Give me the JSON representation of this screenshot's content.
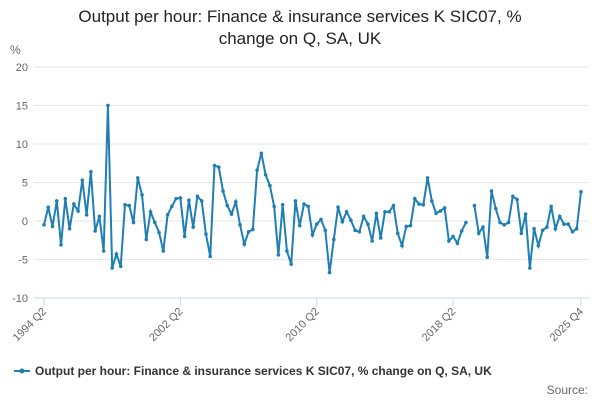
{
  "chart_data": {
    "type": "line",
    "title": "Output per hour: Finance & insurance services K SIC07, % change on Q, SA, UK",
    "y_label": "%",
    "source": "Source:",
    "categories": [
      "1994 Q2",
      null,
      null,
      null,
      null,
      null,
      null,
      null,
      null,
      null,
      null,
      null,
      null,
      null,
      null,
      null,
      null,
      null,
      null,
      null,
      null,
      null,
      null,
      null,
      null,
      null,
      null,
      null,
      null,
      null,
      null,
      null,
      "2002 Q2",
      null,
      null,
      null,
      null,
      null,
      null,
      null,
      null,
      null,
      null,
      null,
      null,
      null,
      null,
      null,
      null,
      null,
      null,
      null,
      null,
      null,
      null,
      null,
      null,
      null,
      null,
      null,
      null,
      null,
      null,
      null,
      "2010 Q2",
      null,
      null,
      null,
      null,
      null,
      null,
      null,
      null,
      null,
      null,
      null,
      null,
      null,
      null,
      null,
      null,
      null,
      null,
      null,
      null,
      null,
      null,
      null,
      null,
      null,
      null,
      null,
      null,
      null,
      null,
      null,
      "2018 Q2",
      null,
      null,
      null,
      null,
      null,
      null,
      null,
      null,
      null,
      null,
      null,
      null,
      null,
      null,
      null,
      null,
      null,
      null,
      null,
      null,
      null,
      null,
      null,
      null,
      null,
      null,
      null,
      null,
      null,
      "2025 Q4"
    ],
    "series": [
      {
        "name": "Output per hour: Finance & insurance services K SIC07, % change on Q, SA, UK",
        "color": "#1f7fb4",
        "values": [
          -0.5,
          1.8,
          -0.7,
          2.6,
          -3.1,
          2.9,
          -1.0,
          2.2,
          1.3,
          5.3,
          0.8,
          6.4,
          -1.3,
          0.6,
          -3.9,
          15.0,
          -6.1,
          -4.3,
          -5.9,
          2.1,
          2.0,
          -0.2,
          5.6,
          3.4,
          -2.4,
          1.2,
          -0.2,
          -1.5,
          -3.9,
          0.8,
          1.9,
          2.9,
          3.0,
          -2.0,
          2.7,
          -0.8,
          3.2,
          2.6,
          -1.7,
          -4.6,
          7.2,
          7.0,
          3.9,
          2.0,
          0.9,
          2.5,
          -0.5,
          -3.0,
          -1.4,
          -1.1,
          6.6,
          8.8,
          6.0,
          4.6,
          1.9,
          -4.4,
          2.1,
          -3.9,
          -5.6,
          2.6,
          -0.6,
          2.2,
          1.9,
          -1.8,
          -0.4,
          0.2,
          -1.2,
          -6.7,
          -2.4,
          1.8,
          -0.1,
          1.2,
          0.1,
          -1.2,
          -1.4,
          0.6,
          -0.4,
          -2.6,
          1.0,
          -2.2,
          1.2,
          1.2,
          2.0,
          -1.6,
          -3.2,
          -0.7,
          -0.6,
          2.9,
          2.2,
          2.1,
          5.6,
          2.6,
          1.0,
          1.3,
          1.7,
          -2.6,
          -2.0,
          -2.9,
          -1.3,
          -0.2,
          null,
          2.0,
          -1.6,
          -0.8,
          -4.7,
          3.9,
          1.6,
          -0.2,
          -0.5,
          -0.2,
          3.2,
          2.8,
          -1.6,
          0.9,
          -6.1,
          -1.0,
          -3.2,
          -1.2,
          -0.8,
          1.9,
          -1.0,
          0.6,
          -0.4,
          -0.4,
          -1.4,
          -1.0,
          3.8
        ]
      }
    ],
    "ylim": [
      -10,
      20
    ],
    "yticks": [
      -10,
      -5,
      0,
      5,
      10,
      15,
      20
    ],
    "grid": true
  }
}
